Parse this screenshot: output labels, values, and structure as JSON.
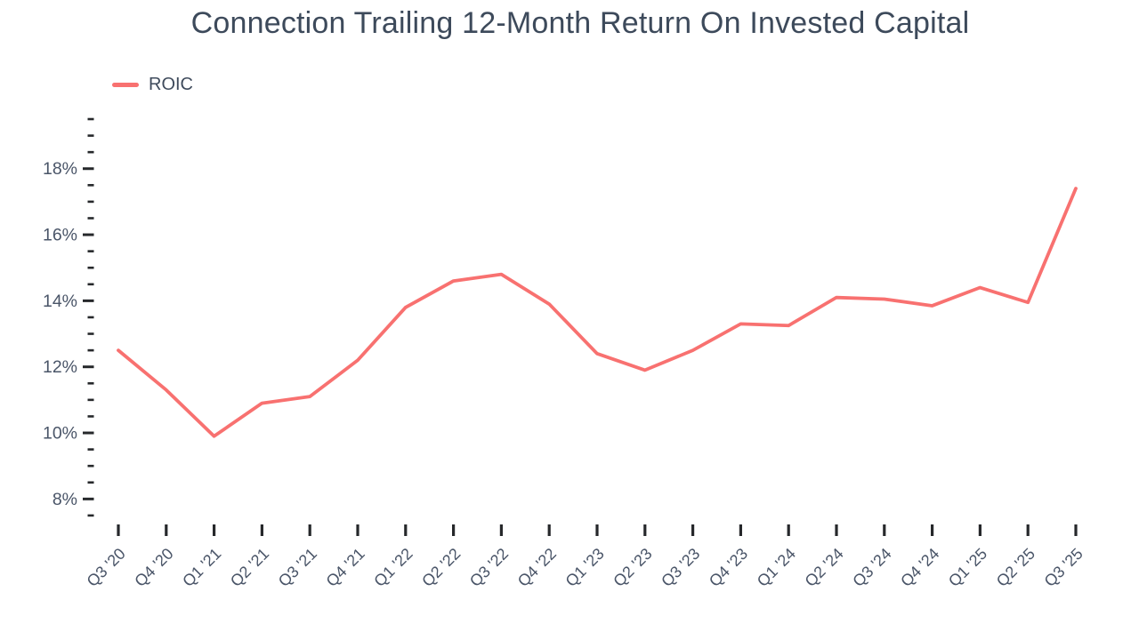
{
  "page": {
    "title": "Connection Trailing 12-Month Return On Invested Capital"
  },
  "colors": {
    "line": "#f87170",
    "title_text": "#3d4a5b",
    "axis_label_text": "#4a5568",
    "tick_mark": "#26282b",
    "background": "#ffffff"
  },
  "legend": {
    "position": "top-left",
    "items": [
      {
        "label": "ROIC",
        "swatch_color": "#f87170"
      }
    ]
  },
  "chart_data": {
    "type": "line",
    "title": "Connection Trailing 12-Month Return On Invested Capital",
    "xlabel": "",
    "ylabel": "",
    "unit": "%",
    "grid": false,
    "legend_position": "top-left",
    "categories": [
      "Q3 '20",
      "Q4 '20",
      "Q1 '21",
      "Q2 '21",
      "Q3 '21",
      "Q4 '21",
      "Q1 '22",
      "Q2 '22",
      "Q3 '22",
      "Q4 '22",
      "Q1 '23",
      "Q2 '23",
      "Q3 '23",
      "Q4 '23",
      "Q1 '24",
      "Q2 '24",
      "Q3 '24",
      "Q4 '24",
      "Q1 '25",
      "Q2 '25",
      "Q3 '25"
    ],
    "series": [
      {
        "name": "ROIC",
        "color": "#f87170",
        "values": [
          12.5,
          11.3,
          9.9,
          10.9,
          11.1,
          12.2,
          13.8,
          14.6,
          14.8,
          13.9,
          12.4,
          11.9,
          12.5,
          13.3,
          13.25,
          14.1,
          14.05,
          13.85,
          14.4,
          13.95,
          17.4
        ]
      }
    ],
    "ylim": [
      7.5,
      19.5
    ],
    "ytick_major": [
      8,
      10,
      12,
      14,
      16,
      18
    ],
    "ytick_minor_step": 0.5,
    "ytick_label_format": "{v}%"
  }
}
